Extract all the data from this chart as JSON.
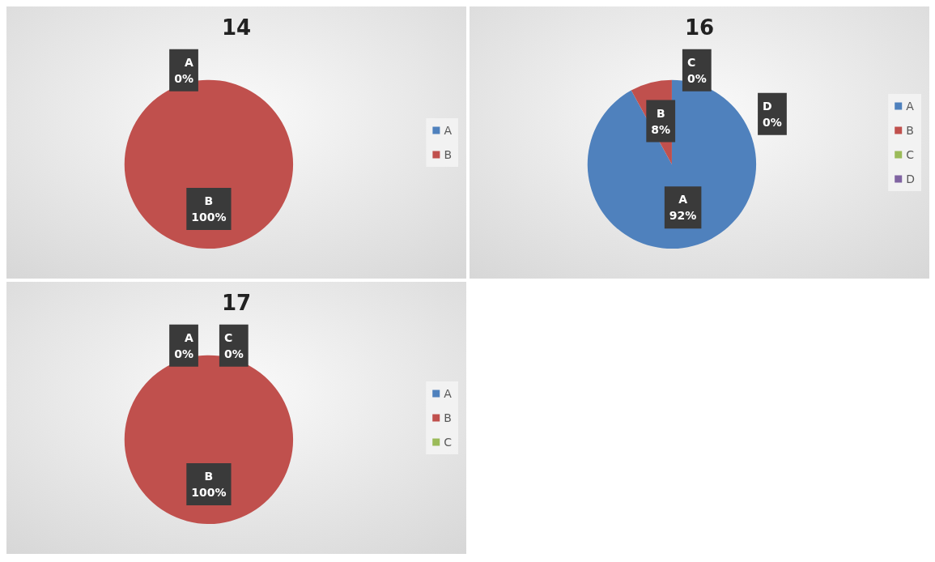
{
  "chart_data": [
    {
      "type": "pie",
      "title": "14",
      "categories": [
        "A",
        "B"
      ],
      "values": [
        0,
        100
      ],
      "value_labels": [
        "0%",
        "100%"
      ],
      "colors": [
        "#4f81bd",
        "#c0504d"
      ],
      "legend": "right"
    },
    {
      "type": "pie",
      "title": "16",
      "categories": [
        "A",
        "B",
        "C",
        "D"
      ],
      "values": [
        92,
        8,
        0,
        0
      ],
      "value_labels": [
        "92%",
        "8%",
        "0%",
        "0%"
      ],
      "colors": [
        "#4f81bd",
        "#c0504d",
        "#9bbb59",
        "#8064a2"
      ],
      "legend": "right"
    },
    {
      "type": "pie",
      "title": "17",
      "categories": [
        "A",
        "B",
        "C"
      ],
      "values": [
        0,
        100,
        0
      ],
      "value_labels": [
        "0%",
        "100%",
        "0%"
      ],
      "colors": [
        "#4f81bd",
        "#c0504d",
        "#9bbb59"
      ],
      "legend": "right"
    }
  ]
}
